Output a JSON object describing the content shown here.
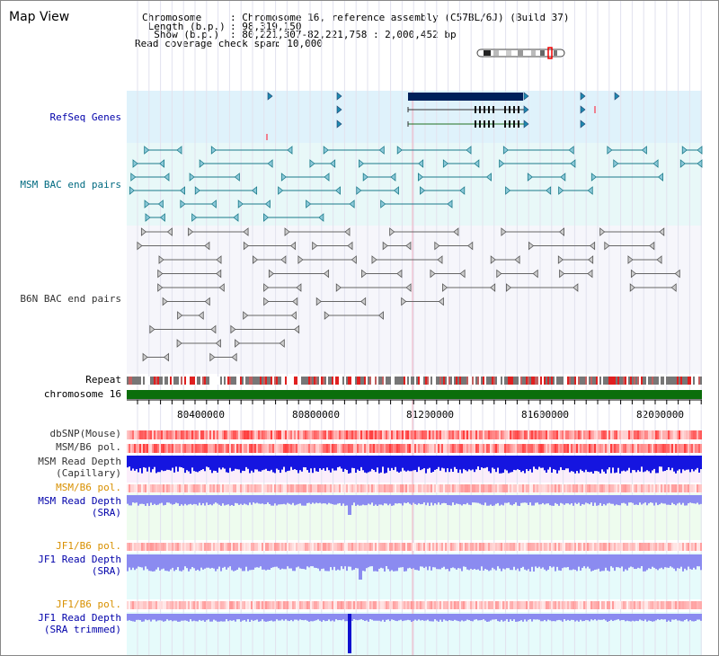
{
  "view_title": "Map View",
  "header": {
    "chromosome_key": "Chromosome",
    "chromosome_value": ": Chromosome 16, reference assembly (C57BL/6J) (Build 37)",
    "length_key": "Length (b.p.)",
    "length_value": ": 98,319,150",
    "show_key": "Show (b.p.)",
    "show_value": ": 80,221,307-82,221,758 : 2,000,452 bp",
    "coverage_key": "Read coverage check span",
    "coverage_value": ": 10,000"
  },
  "tracks": {
    "refseq": "RefSeq Genes",
    "msm_bac": "MSM BAC end pairs",
    "b6n_bac": "B6N BAC end pairs",
    "repeat": "Repeat",
    "chromosome": "chromosome 16",
    "dbsnp": "dbSNP(Mouse)",
    "msm_pol": "MSM/B6 pol.",
    "msm_depth_cap_1": "MSM Read Depth",
    "msm_depth_cap_2": "(Capillary)",
    "msm_pol_2": "MSM/B6 pol.",
    "msm_depth_sra_1": "MSM Read Depth",
    "msm_depth_sra_2": "(SRA)",
    "jf1_pol": "JF1/B6 pol.",
    "jf1_depth_1": "JF1 Read Depth",
    "jf1_depth_2": "(SRA)",
    "jf1_pol_2": "JF1/B6 pol.",
    "jf1_trim_1": "JF1 Read Depth",
    "jf1_trim_2": "(SRA trimmed)"
  },
  "axis": {
    "ticks": [
      "80400000",
      "80800000",
      "81200000",
      "81600000",
      "82000000"
    ]
  },
  "colors": {
    "refseq_bg": "#dff2fb",
    "msm_bac_bg": "#e8f8f8",
    "chromosome_bar": "#0b6e0b",
    "gene": "#00205a",
    "msm_feature": "#1a7a8a",
    "b6n_feature": "#666666",
    "depth_dark": "#1515e0",
    "depth_light": "#8b8bf0",
    "pol_red": "#e83030",
    "cap_bg": "#fbeefa",
    "sra_bg": "#eefcee",
    "jf1_bg": "#e6fbfb"
  }
}
